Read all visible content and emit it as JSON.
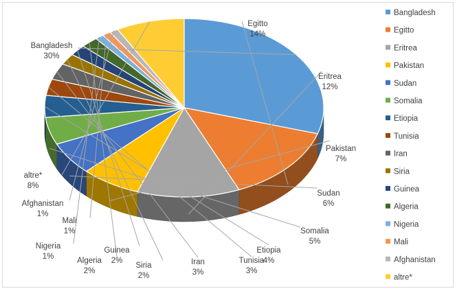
{
  "chart_data": {
    "type": "pie",
    "style": "3d",
    "title": "",
    "legend_position": "right",
    "categories": [
      "Bangladesh",
      "Egitto",
      "Eritrea",
      "Pakistan",
      "Sudan",
      "Somalia",
      "Etiopia",
      "Tunisia",
      "Iran",
      "Siria",
      "Guinea",
      "Algeria",
      "Nigeria",
      "Mali",
      "Afghanistan",
      "altre*"
    ],
    "values": [
      30,
      14,
      12,
      7,
      6,
      5,
      4,
      3,
      3,
      2,
      2,
      2,
      1,
      1,
      1,
      8
    ],
    "value_labels": [
      "30%",
      "14%",
      "12%",
      "7%",
      "6%",
      "5%",
      "4%",
      "3%",
      "3%",
      "2%",
      "2%",
      "2%",
      "1%",
      "1%",
      "1%",
      "8%"
    ],
    "colors": [
      "#5b9bd5",
      "#ed7d31",
      "#a5a5a5",
      "#ffc000",
      "#4472c4",
      "#70ad47",
      "#255e91",
      "#9e480e",
      "#636363",
      "#997300",
      "#264478",
      "#43682b",
      "#7cafdd",
      "#f1975a",
      "#b7b7b7",
      "#ffcd33"
    ]
  }
}
